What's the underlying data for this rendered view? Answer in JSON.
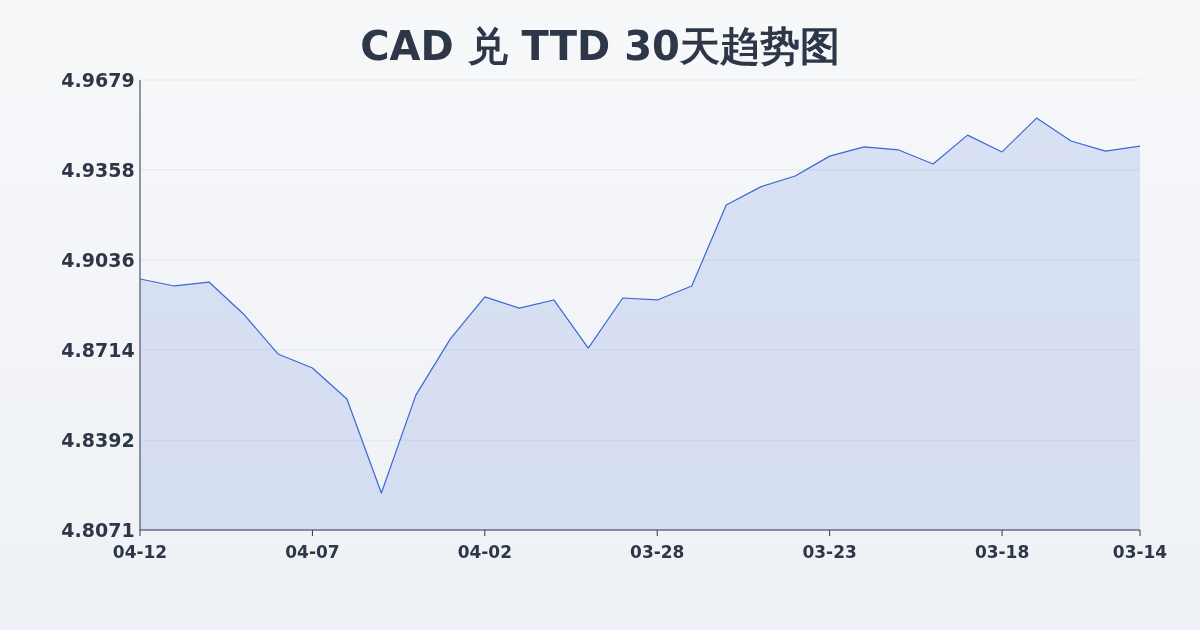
{
  "chart_data": {
    "type": "area",
    "title": "CAD 兑 TTD 30天趋势图",
    "categories": [
      "04-12",
      null,
      null,
      null,
      null,
      "04-07",
      null,
      null,
      null,
      null,
      "04-02",
      null,
      null,
      null,
      null,
      "03-28",
      null,
      null,
      null,
      null,
      "03-23",
      null,
      null,
      null,
      null,
      "03-18",
      null,
      null,
      null,
      "03-14"
    ],
    "series": [
      {
        "color": "#3b68d4",
        "values": [
          4.8968,
          4.8943,
          4.8957,
          4.8843,
          4.87,
          4.865,
          4.8539,
          4.8203,
          4.8553,
          4.8754,
          4.8904,
          4.8864,
          4.8893,
          4.8721,
          4.89,
          4.8893,
          4.8943,
          4.9232,
          4.9297,
          4.9336,
          4.9407,
          4.944,
          4.9429,
          4.9379,
          4.9482,
          4.9422,
          4.9543,
          4.9461,
          4.9425,
          4.9443
        ]
      }
    ],
    "ylim": [
      4.8071,
      4.9679
    ],
    "yticks": [
      4.8071,
      4.8392,
      4.8714,
      4.9036,
      4.9358,
      4.9679
    ],
    "grid": "y"
  }
}
